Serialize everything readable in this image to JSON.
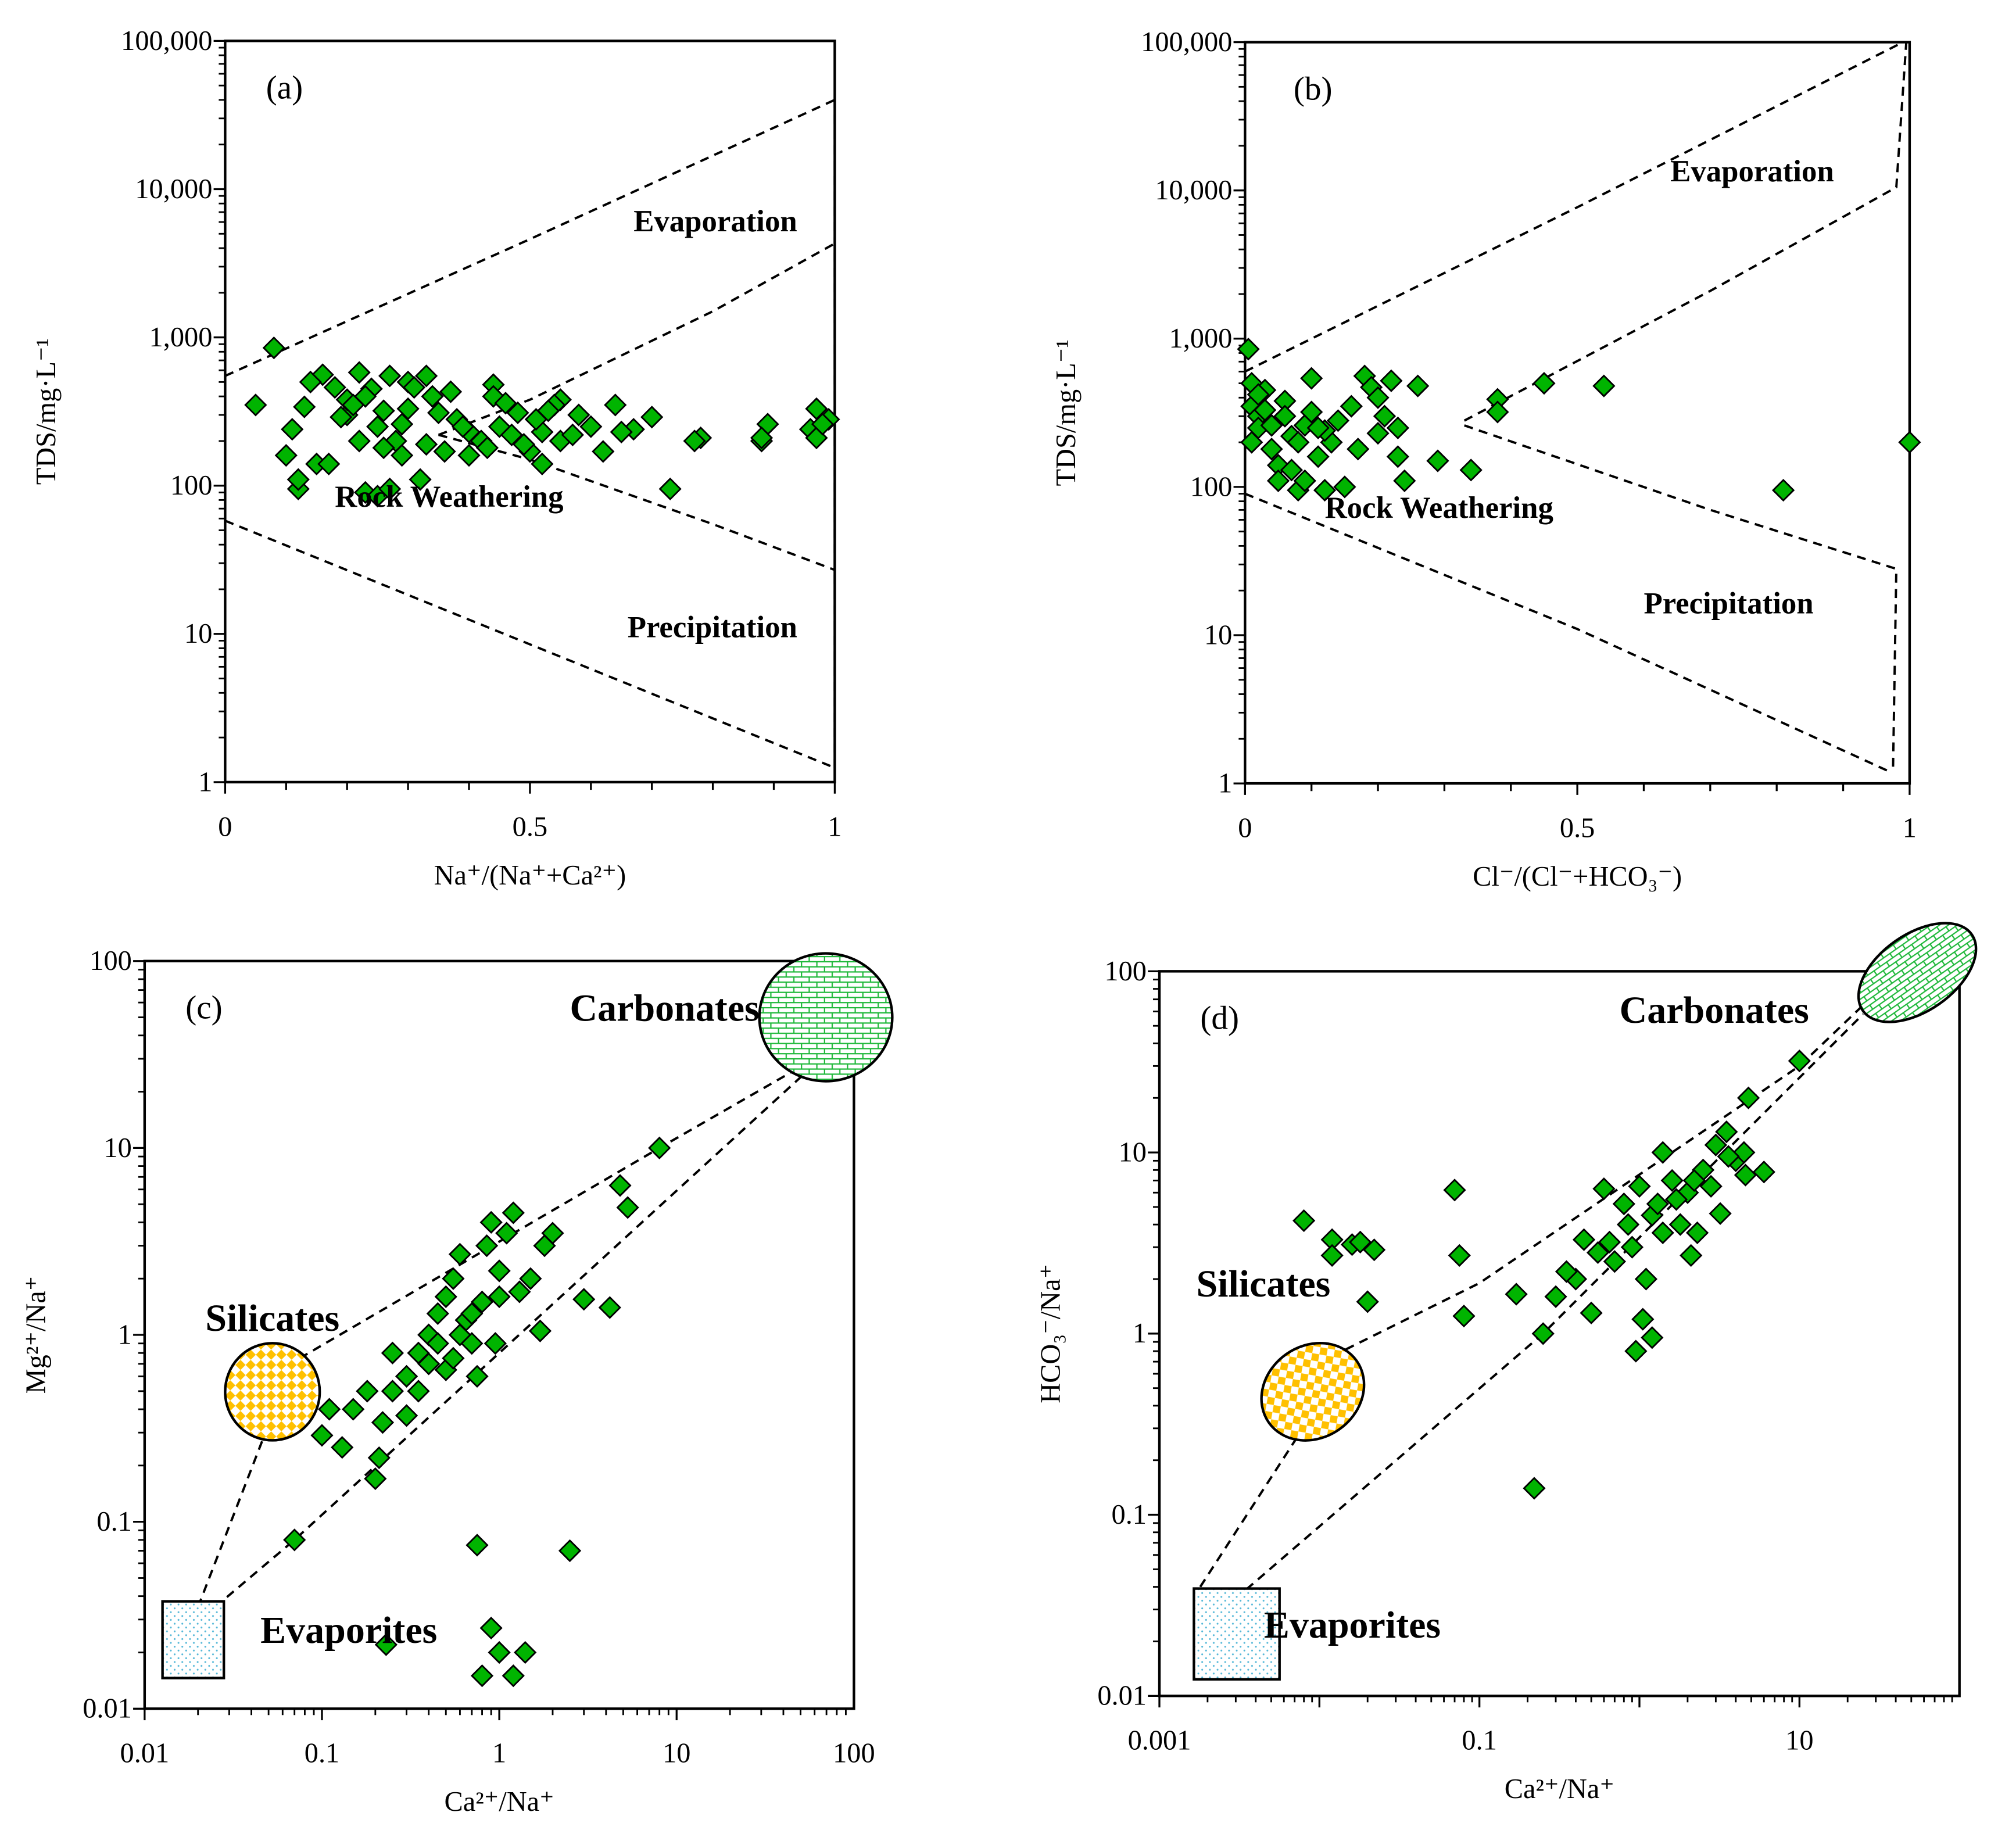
{
  "chart_data": [
    {
      "id": "a",
      "type": "scatter",
      "panel_label": "(a)",
      "xlabel": "Na⁺/(Na⁺+Ca²⁺)",
      "ylabel": "TDS/mg·L⁻¹",
      "xscale": "linear",
      "yscale": "log",
      "xlim": [
        0,
        1
      ],
      "ylim": [
        1,
        100000
      ],
      "xticks": [
        0,
        0.5,
        1
      ],
      "xtick_labels": [
        "0",
        "0.5",
        "1"
      ],
      "yticks": [
        1,
        10,
        100,
        1000,
        10000,
        100000
      ],
      "ytick_labels": [
        "1",
        "10",
        "100",
        "1,000",
        "10,000",
        "100,000"
      ],
      "regions": [
        {
          "text": "Evaporation",
          "x": 0.67,
          "y": 5200
        },
        {
          "text": "Rock Weathering",
          "x": 0.18,
          "y": 72
        },
        {
          "text": "Precipitation",
          "x": 0.66,
          "y": 9.5
        }
      ],
      "boundary_lines": [
        [
          [
            0,
            550
          ],
          [
            0.5,
            4600
          ],
          [
            1,
            40000
          ]
        ],
        [
          [
            0.35,
            220
          ],
          [
            0.5,
            380
          ],
          [
            0.8,
            1500
          ],
          [
            1,
            4300
          ]
        ],
        [
          [
            0.35,
            220
          ],
          [
            0.5,
            150
          ],
          [
            0.8,
            55
          ],
          [
            1,
            27
          ]
        ],
        [
          [
            0,
            58
          ],
          [
            0.5,
            8.5
          ],
          [
            1,
            1.25
          ]
        ],
        [
          [
            1,
            1.25
          ],
          [
            1,
            40000
          ]
        ]
      ],
      "points": [
        [
          0.05,
          350
        ],
        [
          0.08,
          850
        ],
        [
          0.1,
          160
        ],
        [
          0.12,
          95
        ],
        [
          0.12,
          110
        ],
        [
          0.15,
          140
        ],
        [
          0.73,
          95
        ],
        [
          0.78,
          210
        ],
        [
          0.77,
          200
        ],
        [
          0.88,
          200
        ],
        [
          0.89,
          260
        ],
        [
          0.88,
          210
        ],
        [
          0.96,
          240
        ],
        [
          0.97,
          330
        ],
        [
          0.97,
          210
        ],
        [
          0.99,
          280
        ],
        [
          0.98,
          260
        ],
        [
          0.7,
          290
        ],
        [
          0.67,
          240
        ],
        [
          0.64,
          350
        ],
        [
          0.62,
          170
        ],
        [
          0.65,
          230
        ],
        [
          0.6,
          250
        ],
        [
          0.58,
          300
        ],
        [
          0.55,
          380
        ],
        [
          0.54,
          350
        ],
        [
          0.52,
          140
        ],
        [
          0.5,
          170
        ],
        [
          0.48,
          310
        ],
        [
          0.44,
          480
        ],
        [
          0.44,
          400
        ],
        [
          0.46,
          360
        ],
        [
          0.42,
          200
        ],
        [
          0.4,
          160
        ],
        [
          0.36,
          170
        ],
        [
          0.33,
          550
        ],
        [
          0.3,
          500
        ],
        [
          0.27,
          550
        ],
        [
          0.22,
          580
        ],
        [
          0.16,
          560
        ],
        [
          0.14,
          500
        ],
        [
          0.18,
          460
        ],
        [
          0.2,
          300
        ],
        [
          0.2,
          380
        ],
        [
          0.24,
          450
        ],
        [
          0.26,
          320
        ],
        [
          0.28,
          200
        ],
        [
          0.3,
          330
        ],
        [
          0.32,
          110
        ],
        [
          0.23,
          90
        ],
        [
          0.25,
          85
        ],
        [
          0.27,
          95
        ],
        [
          0.22,
          200
        ],
        [
          0.25,
          250
        ],
        [
          0.29,
          260
        ],
        [
          0.35,
          310
        ],
        [
          0.38,
          280
        ],
        [
          0.4,
          230
        ],
        [
          0.45,
          250
        ],
        [
          0.47,
          220
        ],
        [
          0.52,
          230
        ],
        [
          0.55,
          200
        ],
        [
          0.57,
          220
        ],
        [
          0.11,
          240
        ],
        [
          0.13,
          340
        ],
        [
          0.17,
          140
        ],
        [
          0.19,
          290
        ],
        [
          0.21,
          350
        ],
        [
          0.23,
          400
        ],
        [
          0.31,
          460
        ],
        [
          0.34,
          400
        ],
        [
          0.37,
          430
        ],
        [
          0.26,
          180
        ],
        [
          0.29,
          160
        ],
        [
          0.33,
          190
        ],
        [
          0.39,
          250
        ],
        [
          0.43,
          180
        ],
        [
          0.49,
          190
        ],
        [
          0.51,
          280
        ],
        [
          0.53,
          320
        ]
      ]
    },
    {
      "id": "b",
      "type": "scatter",
      "panel_label": "(b)",
      "xlabel": "Cl⁻/(Cl⁻+HCO₃⁻)",
      "ylabel": "TDS/mg·L⁻¹",
      "xscale": "linear",
      "yscale": "log",
      "xlim": [
        0,
        1
      ],
      "ylim": [
        1,
        100000
      ],
      "xticks": [
        0,
        0.5,
        1
      ],
      "xtick_labels": [
        "0",
        "0.5",
        "1"
      ],
      "yticks": [
        1,
        10,
        100,
        1000,
        10000,
        100000
      ],
      "ytick_labels": [
        "1",
        "10",
        "100",
        "1,000",
        "10,000",
        "100,000"
      ],
      "regions": [
        {
          "text": "Evaporation",
          "x": 0.64,
          "y": 11500
        },
        {
          "text": "Rock Weathering",
          "x": 0.12,
          "y": 62
        },
        {
          "text": "Precipitation",
          "x": 0.6,
          "y": 14
        }
      ],
      "boundary_lines": [
        [
          [
            0,
            600
          ],
          [
            0.5,
            7700
          ],
          [
            0.99,
            100000
          ]
        ],
        [
          [
            0.33,
            280
          ],
          [
            0.7,
            2100
          ],
          [
            0.98,
            10500
          ],
          [
            0.995,
            100000
          ]
        ],
        [
          [
            0.33,
            260
          ],
          [
            0.7,
            70
          ],
          [
            0.98,
            28
          ],
          [
            0.975,
            1.2
          ]
        ],
        [
          [
            0,
            90
          ],
          [
            0.5,
            11
          ],
          [
            0.97,
            1.2
          ]
        ]
      ],
      "points": [
        [
          0.005,
          850
        ],
        [
          0.01,
          500
        ],
        [
          0.01,
          350
        ],
        [
          0.02,
          300
        ],
        [
          0.02,
          250
        ],
        [
          0.01,
          200
        ],
        [
          0.03,
          450
        ],
        [
          0.04,
          180
        ],
        [
          0.05,
          140
        ],
        [
          0.05,
          110
        ],
        [
          0.06,
          380
        ],
        [
          0.07,
          220
        ],
        [
          0.08,
          95
        ],
        [
          0.09,
          260
        ],
        [
          0.1,
          540
        ],
        [
          0.1,
          320
        ],
        [
          0.11,
          160
        ],
        [
          0.12,
          95
        ],
        [
          0.13,
          200
        ],
        [
          0.15,
          100
        ],
        [
          0.16,
          350
        ],
        [
          0.18,
          560
        ],
        [
          0.19,
          470
        ],
        [
          0.2,
          400
        ],
        [
          0.2,
          230
        ],
        [
          0.21,
          300
        ],
        [
          0.22,
          520
        ],
        [
          0.23,
          250
        ],
        [
          0.23,
          160
        ],
        [
          0.24,
          110
        ],
        [
          0.26,
          480
        ],
        [
          0.29,
          150
        ],
        [
          0.34,
          130
        ],
        [
          0.38,
          390
        ],
        [
          0.38,
          320
        ],
        [
          0.45,
          500
        ],
        [
          0.54,
          480
        ],
        [
          0.81,
          95
        ],
        [
          1.0,
          200
        ],
        [
          0.03,
          330
        ],
        [
          0.04,
          260
        ],
        [
          0.06,
          300
        ],
        [
          0.08,
          200
        ],
        [
          0.12,
          240
        ],
        [
          0.14,
          280
        ],
        [
          0.17,
          180
        ],
        [
          0.02,
          420
        ],
        [
          0.07,
          130
        ],
        [
          0.09,
          110
        ],
        [
          0.11,
          250
        ]
      ]
    },
    {
      "id": "c",
      "type": "scatter",
      "panel_label": "(c)",
      "xlabel": "Ca²⁺/Na⁺",
      "ylabel": "Mg²⁺/Na⁺",
      "xscale": "log",
      "yscale": "log",
      "xlim": [
        0.01,
        100
      ],
      "ylim": [
        0.01,
        100
      ],
      "xticks": [
        0.01,
        0.1,
        1,
        10,
        100
      ],
      "xtick_labels": [
        "0.01",
        "0.1",
        "1",
        "10",
        "100"
      ],
      "yticks": [
        0.01,
        0.1,
        1,
        10,
        100
      ],
      "ytick_labels": [
        "0.01",
        "0.1",
        "1",
        "10",
        "100"
      ],
      "regions": [
        {
          "text": "Carbonates",
          "x": 2.5,
          "y": 48
        },
        {
          "text": "Silicates",
          "x": 0.022,
          "y": 1.05
        },
        {
          "text": "Evaporites",
          "x": 0.045,
          "y": 0.0225
        }
      ],
      "boundary_lines": [
        [
          [
            0.075,
            0.75
          ],
          [
            8,
            10
          ],
          [
            60,
            30
          ]
        ],
        [
          [
            0.025,
            0.035
          ],
          [
            0.07,
            0.08
          ],
          [
            1,
            0.8
          ],
          [
            60,
            28
          ]
        ],
        [
          [
            0.02,
            0.035
          ],
          [
            0.048,
            0.3
          ]
        ]
      ],
      "points": [
        [
          0.07,
          0.08
        ],
        [
          0.1,
          0.29
        ],
        [
          0.11,
          0.4
        ],
        [
          0.13,
          0.25
        ],
        [
          0.15,
          0.4
        ],
        [
          0.18,
          0.5
        ],
        [
          0.2,
          0.17
        ],
        [
          0.21,
          0.22
        ],
        [
          0.22,
          0.34
        ],
        [
          0.25,
          0.5
        ],
        [
          0.25,
          0.8
        ],
        [
          0.3,
          0.6
        ],
        [
          0.3,
          0.37
        ],
        [
          0.35,
          0.8
        ],
        [
          0.4,
          1.0
        ],
        [
          0.45,
          1.3
        ],
        [
          0.5,
          0.65
        ],
        [
          0.5,
          1.6
        ],
        [
          0.55,
          2.0
        ],
        [
          0.6,
          2.7
        ],
        [
          0.65,
          1.2
        ],
        [
          0.7,
          0.9
        ],
        [
          0.75,
          0.6
        ],
        [
          0.8,
          1.5
        ],
        [
          0.85,
          3.0
        ],
        [
          0.9,
          4.0
        ],
        [
          0.95,
          0.9
        ],
        [
          1.0,
          2.2
        ],
        [
          1.1,
          3.5
        ],
        [
          1.2,
          4.5
        ],
        [
          1.3,
          1.7
        ],
        [
          1.5,
          2.0
        ],
        [
          1.8,
          3.0
        ],
        [
          2.0,
          3.5
        ],
        [
          1.7,
          1.05
        ],
        [
          3.0,
          1.55
        ],
        [
          4.2,
          1.4
        ],
        [
          4.8,
          6.3
        ],
        [
          5.3,
          4.8
        ],
        [
          8.0,
          10
        ],
        [
          0.75,
          0.075
        ],
        [
          2.5,
          0.07
        ],
        [
          0.23,
          0.022
        ],
        [
          0.9,
          0.027
        ],
        [
          1.0,
          0.02
        ],
        [
          0.8,
          0.015
        ],
        [
          1.2,
          0.015
        ],
        [
          1.4,
          0.02
        ],
        [
          0.4,
          0.7
        ],
        [
          0.6,
          1.0
        ],
        [
          0.7,
          1.3
        ],
        [
          0.35,
          0.5
        ],
        [
          1.0,
          1.6
        ],
        [
          0.45,
          0.9
        ],
        [
          0.55,
          0.75
        ]
      ]
    },
    {
      "id": "d",
      "type": "scatter",
      "panel_label": "(d)",
      "xlabel": "Ca²⁺/Na⁺",
      "ylabel": "HCO₃⁻/Na⁺",
      "xscale": "log",
      "yscale": "log",
      "xlim": [
        0.001,
        100
      ],
      "ylim": [
        0.01,
        100
      ],
      "xticks": [
        0.001,
        0.1,
        10
      ],
      "xtick_labels": [
        "0.001",
        "0.1",
        "10"
      ],
      "yticks": [
        0.01,
        0.1,
        1,
        10,
        100
      ],
      "ytick_labels": [
        "0.01",
        "0.1",
        "1",
        "10",
        "100"
      ],
      "regions": [
        {
          "text": "Carbonates",
          "x": 0.75,
          "y": 52
        },
        {
          "text": "Silicates",
          "x": 0.0017,
          "y": 1.6
        },
        {
          "text": "Evaporites",
          "x": 0.0045,
          "y": 0.021
        }
      ],
      "boundary_lines": [
        [
          [
            0.012,
            0.75
          ],
          [
            0.1,
            1.9
          ],
          [
            10,
            30
          ],
          [
            25,
            65
          ]
        ],
        [
          [
            0.0025,
            0.03
          ],
          [
            0.25,
            1.0
          ],
          [
            25,
            58
          ]
        ],
        [
          [
            0.0018,
            0.04
          ],
          [
            0.0075,
            0.28
          ]
        ]
      ],
      "points": [
        [
          0.008,
          4.2
        ],
        [
          0.012,
          3.3
        ],
        [
          0.012,
          2.7
        ],
        [
          0.016,
          3.1
        ],
        [
          0.018,
          3.2
        ],
        [
          0.022,
          2.9
        ],
        [
          0.02,
          1.5
        ],
        [
          0.07,
          6.2
        ],
        [
          0.075,
          2.7
        ],
        [
          0.08,
          1.25
        ],
        [
          0.17,
          1.65
        ],
        [
          0.25,
          1.0
        ],
        [
          0.22,
          0.14
        ],
        [
          0.3,
          1.6
        ],
        [
          0.4,
          2.0
        ],
        [
          0.5,
          1.3
        ],
        [
          0.6,
          6.3
        ],
        [
          0.7,
          2.5
        ],
        [
          0.8,
          5.2
        ],
        [
          0.9,
          3.0
        ],
        [
          1.0,
          6.5
        ],
        [
          1.1,
          2.0
        ],
        [
          0.95,
          0.8
        ],
        [
          1.05,
          1.2
        ],
        [
          1.2,
          0.95
        ],
        [
          1.2,
          4.5
        ],
        [
          1.4,
          3.6
        ],
        [
          1.4,
          10
        ],
        [
          1.6,
          7.0
        ],
        [
          1.8,
          4.0
        ],
        [
          2.0,
          6.0
        ],
        [
          2.1,
          2.7
        ],
        [
          2.3,
          3.6
        ],
        [
          2.5,
          8.0
        ],
        [
          3.0,
          11
        ],
        [
          3.2,
          4.6
        ],
        [
          3.5,
          13
        ],
        [
          4.0,
          9.0
        ],
        [
          4.5,
          10
        ],
        [
          4.6,
          7.5
        ],
        [
          6.0,
          7.8
        ],
        [
          4.8,
          20
        ],
        [
          10,
          32
        ],
        [
          0.35,
          2.2
        ],
        [
          0.45,
          3.3
        ],
        [
          0.55,
          2.8
        ],
        [
          0.65,
          3.2
        ],
        [
          0.85,
          4.0
        ],
        [
          1.3,
          5.2
        ],
        [
          1.7,
          5.5
        ],
        [
          2.2,
          7.0
        ],
        [
          2.8,
          6.5
        ],
        [
          3.6,
          9.5
        ]
      ]
    }
  ],
  "colors": {
    "marker": "#00b400",
    "silicates": "#ffc000",
    "carbonates": "#1fb83a",
    "evaporites": "#55b8d8"
  }
}
